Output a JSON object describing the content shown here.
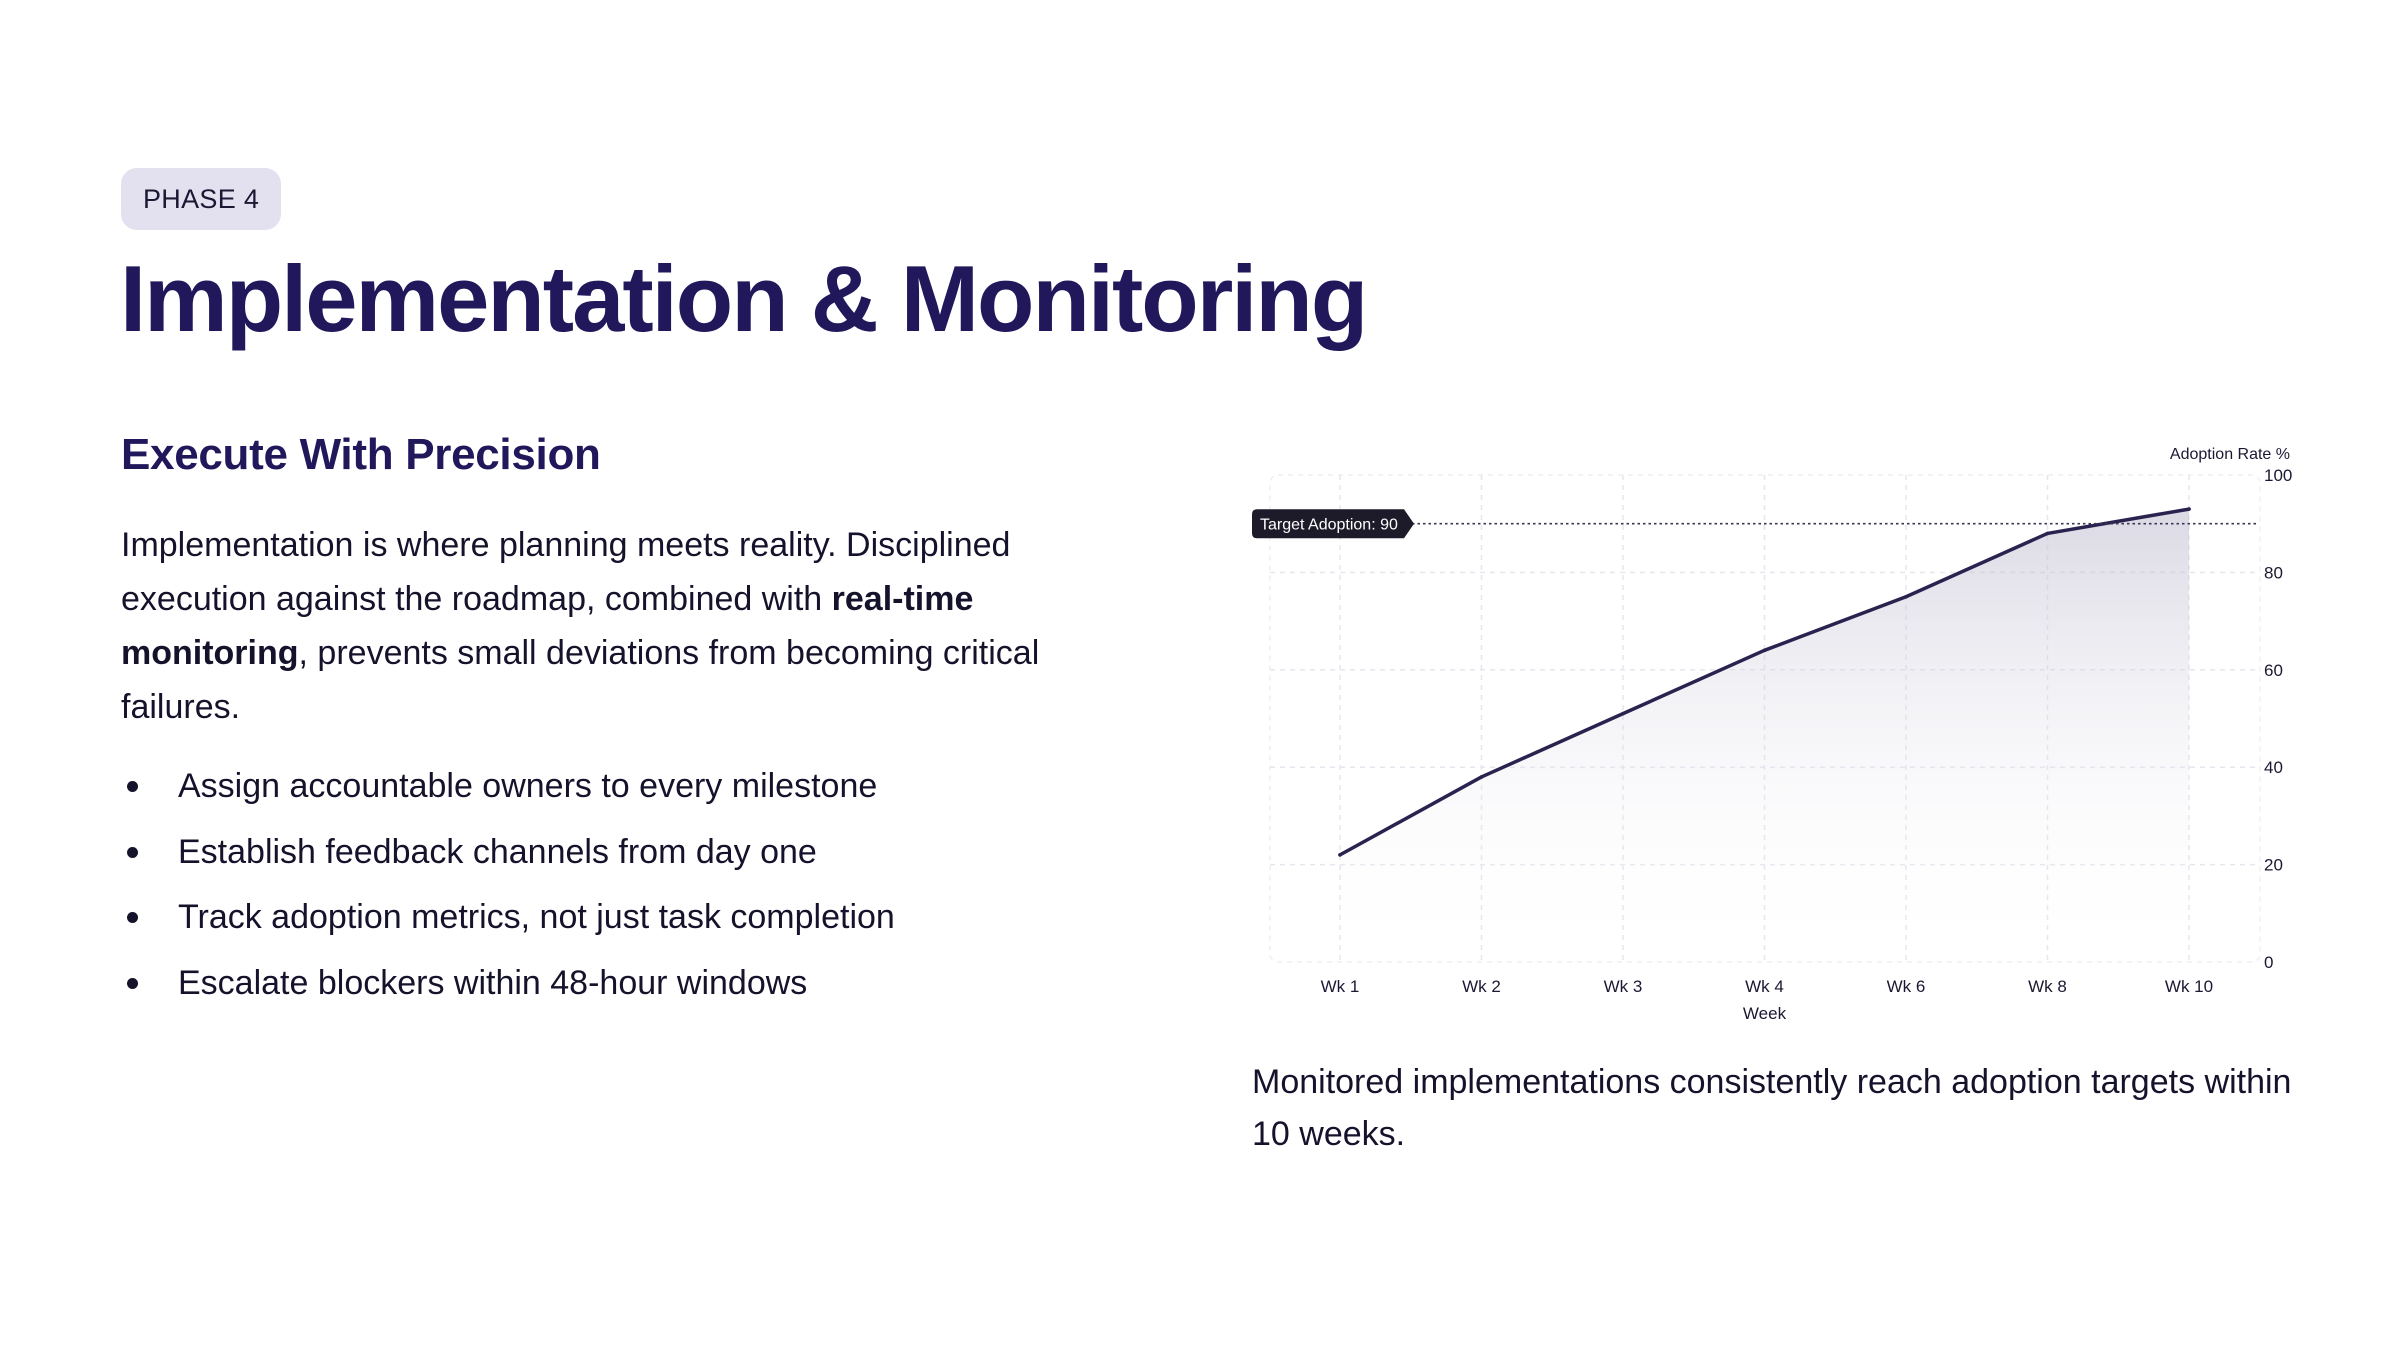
{
  "phase_label": "PHASE 4",
  "title": "Implementation & Monitoring",
  "subtitle": "Execute With Precision",
  "body": {
    "part1": "Implementation is where planning meets reality. Disciplined execution against the roadmap, combined with ",
    "bold1": "real-time monitoring",
    "part2": ", prevents small deviations from becoming critical failures."
  },
  "bullets": [
    "Assign accountable owners to every milestone",
    "Establish feedback channels from day one",
    "Track adoption metrics, not just task completion",
    "Escalate blockers within 48-hour windows"
  ],
  "caption": "Monitored implementations consistently reach adoption targets within 10 weeks.",
  "colors": {
    "accent": "#21185c",
    "line": "#2a2350",
    "pill_bg": "#e3e1ef",
    "grid": "#e6e6ee"
  },
  "chart_data": {
    "type": "area",
    "categories": [
      "Wk 1",
      "Wk 2",
      "Wk 3",
      "Wk 4",
      "Wk 6",
      "Wk 8",
      "Wk 10"
    ],
    "series": [
      {
        "name": "Adoption Rate %",
        "values": [
          22,
          38,
          51,
          64,
          75,
          88,
          93
        ]
      }
    ],
    "xlabel": "Week",
    "ylabel": "Adoption Rate %",
    "ylim": [
      0,
      100
    ],
    "yticks": [
      0,
      20,
      40,
      60,
      80,
      100
    ],
    "y_axis_side": "right",
    "grid": true,
    "reference_line": {
      "value": 90,
      "label": "Target Adoption: 90"
    }
  }
}
